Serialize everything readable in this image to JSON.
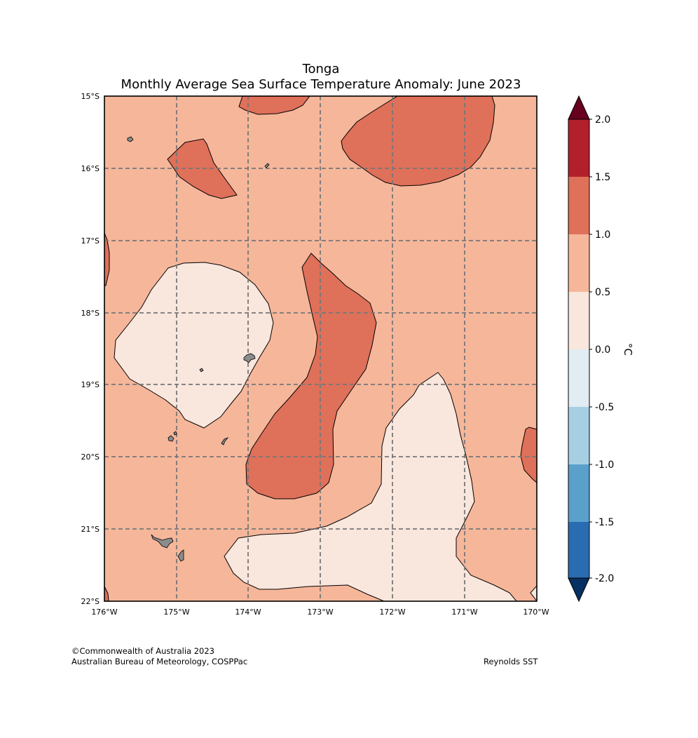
{
  "title": {
    "line1": "Tonga",
    "line2": "Monthly Average Sea Surface Temperature Anomaly: June 2023"
  },
  "map": {
    "lon_range": [
      -176,
      -170
    ],
    "lat_range": [
      -22,
      -15
    ],
    "lon_ticks": [
      "176°W",
      "175°W",
      "174°W",
      "173°W",
      "172°W",
      "171°W",
      "170°W"
    ],
    "lat_ticks": [
      "15°S",
      "16°S",
      "17°S",
      "18°S",
      "19°S",
      "20°S",
      "21°S",
      "22°S"
    ],
    "gridlines": true,
    "background_class": "0.5 to 1.0",
    "land_color": "#8c8c8c"
  },
  "colorbar": {
    "label": "°C",
    "tick_labels": [
      "2.0",
      "1.5",
      "1.0",
      "0.5",
      "0.0",
      "-0.5",
      "-1.0",
      "-1.5",
      "-2.0"
    ],
    "colors_top_to_bottom": [
      "#b2202c",
      "#df705a",
      "#f6b69a",
      "#f9e6dc",
      "#e1ecf3",
      "#a7cfe3",
      "#5ba0cb",
      "#2a6cb1"
    ],
    "extend_max_color": "#67001f",
    "extend_min_color": "#053061"
  },
  "footer": {
    "copyright": "©Commonwealth of Australia 2023",
    "org": "Australian Bureau of Meteorology, COSPPac",
    "source": "Reynolds SST"
  }
}
